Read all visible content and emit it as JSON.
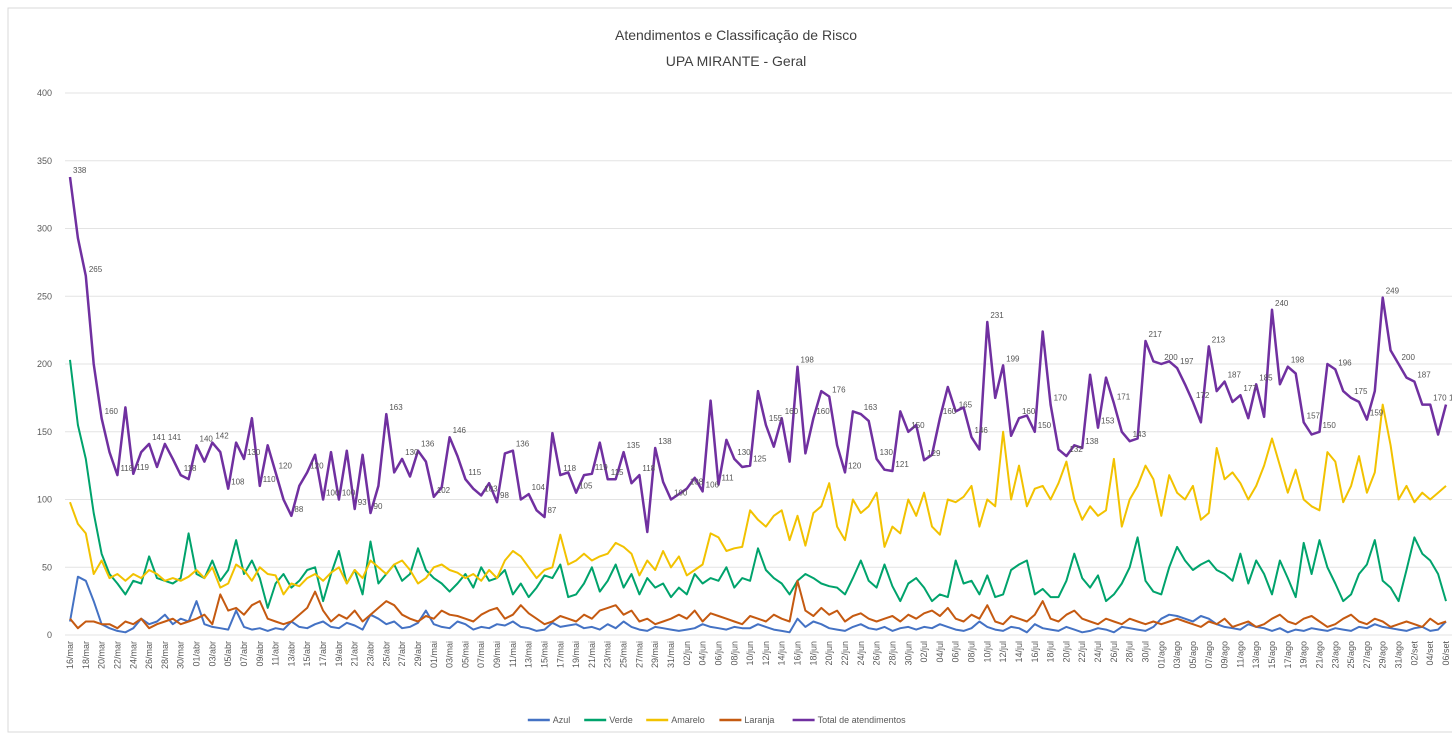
{
  "chart_data": {
    "type": "line",
    "title": "Atendimentos e Classificação de Risco",
    "subtitle": "UPA MIRANTE - Geral",
    "categories": [
      "16/mar",
      null,
      "18/mar",
      null,
      "20/mar",
      null,
      "22/mar",
      null,
      "24/mar",
      null,
      "26/mar",
      null,
      "28/mar",
      null,
      "30/mar",
      null,
      "01/abr",
      null,
      "03/abr",
      null,
      "05/abr",
      null,
      "07/abr",
      null,
      "09/abr",
      null,
      "11/abr",
      null,
      "13/abr",
      null,
      "15/abr",
      null,
      "17/abr",
      null,
      "19/abr",
      null,
      "21/abr",
      null,
      "23/abr",
      null,
      "25/abr",
      null,
      "27/abr",
      null,
      "29/abr",
      null,
      "01/mai",
      null,
      "03/mai",
      null,
      "05/mai",
      null,
      "07/mai",
      null,
      "09/mai",
      null,
      "11/mai",
      null,
      "13/mai",
      null,
      "15/mai",
      null,
      "17/mai",
      null,
      "19/mai",
      null,
      "21/mai",
      null,
      "23/mai",
      null,
      "25/mai",
      null,
      "27/mai",
      null,
      "29/mai",
      null,
      "31/mai",
      null,
      "02/jun",
      null,
      "04/jun",
      null,
      "06/jun",
      null,
      "08/jun",
      null,
      "10/jun",
      null,
      "12/jun",
      null,
      "14/jun",
      null,
      "16/jun",
      null,
      "18/jun",
      null,
      "20/jun",
      null,
      "22/jun",
      null,
      "24/jun",
      null,
      "26/jun",
      null,
      "28/jun",
      null,
      "30/jun",
      null,
      "02/jul",
      null,
      "04/jul",
      null,
      "06/jul",
      null,
      "08/jul",
      null,
      "10/jul",
      null,
      "12/jul",
      null,
      "14/jul",
      null,
      "16/jul",
      null,
      "18/jul",
      null,
      "20/jul",
      null,
      "22/jul",
      null,
      "24/jul",
      null,
      "26/jul",
      null,
      "28/jul",
      null,
      "30/jul",
      null,
      "01/ago",
      null,
      "03/ago",
      null,
      "05/ago",
      null,
      "07/ago",
      null,
      "09/ago",
      null,
      "11/ago",
      null,
      "13/ago",
      null,
      "15/ago",
      null,
      "17/ago",
      null,
      "19/ago",
      null,
      "21/ago",
      null,
      "23/ago",
      null,
      "25/ago",
      null,
      "27/ago",
      null,
      "29/ago",
      null,
      "31/ago",
      null,
      "02/set",
      null,
      "04/set",
      null,
      "06/set"
    ],
    "series": [
      {
        "name": "Azul",
        "color": "#4472c4",
        "values": [
          10,
          43,
          40,
          25,
          8,
          5,
          3,
          2,
          5,
          12,
          8,
          10,
          15,
          8,
          12,
          10,
          25,
          8,
          6,
          5,
          4,
          18,
          6,
          4,
          5,
          3,
          5,
          4,
          10,
          6,
          5,
          8,
          10,
          6,
          5,
          9,
          7,
          4,
          15,
          12,
          8,
          10,
          5,
          6,
          9,
          18,
          8,
          6,
          5,
          10,
          8,
          4,
          6,
          5,
          8,
          7,
          10,
          6,
          5,
          3,
          4,
          9,
          6,
          7,
          8,
          5,
          6,
          4,
          8,
          5,
          10,
          6,
          4,
          3,
          6,
          5,
          4,
          3,
          4,
          5,
          8,
          6,
          5,
          4,
          6,
          5,
          5,
          8,
          6,
          4,
          3,
          2,
          12,
          6,
          10,
          8,
          5,
          4,
          3,
          6,
          8,
          5,
          4,
          6,
          3,
          5,
          6,
          4,
          6,
          5,
          8,
          6,
          4,
          3,
          5,
          10,
          6,
          4,
          3,
          6,
          5,
          2,
          8,
          5,
          4,
          3,
          6,
          4,
          2,
          3,
          5,
          4,
          2,
          6,
          5,
          4,
          3,
          6,
          12,
          15,
          14,
          12,
          10,
          14,
          12,
          8,
          6,
          5,
          4,
          8,
          6,
          5,
          3,
          5,
          2,
          4,
          3,
          5,
          4,
          3,
          5,
          4,
          3,
          6,
          5,
          8,
          6,
          5,
          4,
          3,
          5,
          6,
          3,
          4,
          10
        ]
      },
      {
        "name": "Verde",
        "color": "#00a36c",
        "values": [
          203,
          155,
          130,
          90,
          60,
          45,
          38,
          30,
          40,
          38,
          58,
          42,
          40,
          38,
          42,
          75,
          45,
          42,
          55,
          40,
          48,
          70,
          45,
          55,
          42,
          20,
          38,
          45,
          35,
          40,
          48,
          50,
          25,
          45,
          62,
          38,
          48,
          30,
          69,
          38,
          45,
          52,
          40,
          45,
          64,
          48,
          42,
          38,
          32,
          38,
          45,
          35,
          50,
          40,
          42,
          48,
          30,
          38,
          28,
          35,
          44,
          42,
          52,
          28,
          30,
          38,
          50,
          32,
          40,
          52,
          35,
          45,
          30,
          42,
          35,
          38,
          28,
          35,
          30,
          45,
          38,
          42,
          40,
          50,
          35,
          42,
          40,
          64,
          48,
          42,
          38,
          30,
          40,
          45,
          42,
          38,
          36,
          35,
          30,
          42,
          55,
          40,
          35,
          52,
          36,
          25,
          38,
          42,
          35,
          25,
          30,
          28,
          55,
          38,
          40,
          30,
          44,
          28,
          30,
          48,
          52,
          55,
          30,
          34,
          28,
          28,
          40,
          60,
          42,
          35,
          44,
          25,
          30,
          38,
          50,
          72,
          40,
          32,
          30,
          50,
          65,
          55,
          48,
          52,
          55,
          48,
          45,
          40,
          60,
          38,
          55,
          45,
          30,
          55,
          42,
          28,
          68,
          45,
          70,
          50,
          38,
          25,
          30,
          45,
          52,
          70,
          40,
          35,
          25,
          48,
          72,
          60,
          55,
          45,
          25
        ]
      },
      {
        "name": "Amarelo",
        "color": "#f2c200",
        "values": [
          98,
          82,
          75,
          45,
          55,
          42,
          45,
          40,
          45,
          42,
          48,
          45,
          40,
          42,
          40,
          43,
          48,
          42,
          50,
          35,
          38,
          52,
          48,
          40,
          50,
          45,
          44,
          30,
          38,
          36,
          42,
          45,
          40,
          46,
          50,
          38,
          48,
          42,
          55,
          50,
          45,
          52,
          55,
          48,
          38,
          42,
          50,
          52,
          48,
          46,
          42,
          45,
          40,
          48,
          42,
          55,
          62,
          58,
          50,
          42,
          48,
          50,
          74,
          52,
          55,
          60,
          55,
          58,
          60,
          68,
          65,
          60,
          44,
          55,
          48,
          62,
          50,
          58,
          44,
          48,
          52,
          75,
          72,
          62,
          64,
          65,
          92,
          85,
          80,
          88,
          92,
          70,
          88,
          66,
          90,
          95,
          112,
          80,
          70,
          100,
          90,
          95,
          105,
          65,
          80,
          75,
          100,
          88,
          105,
          80,
          74,
          100,
          98,
          102,
          110,
          80,
          100,
          95,
          150,
          100,
          125,
          95,
          108,
          110,
          100,
          112,
          128,
          100,
          85,
          95,
          88,
          92,
          130,
          80,
          100,
          110,
          125,
          115,
          88,
          118,
          105,
          100,
          110,
          85,
          90,
          138,
          115,
          120,
          112,
          100,
          110,
          125,
          145,
          125,
          105,
          122,
          100,
          95,
          92,
          135,
          128,
          98,
          110,
          132,
          105,
          120,
          170,
          140,
          100,
          110,
          98,
          105,
          100,
          105,
          110
        ]
      },
      {
        "name": "Laranja",
        "color": "#c55a11",
        "values": [
          12,
          5,
          10,
          10,
          8,
          8,
          5,
          10,
          8,
          12,
          5,
          8,
          10,
          12,
          8,
          10,
          12,
          15,
          8,
          30,
          18,
          20,
          15,
          22,
          25,
          12,
          10,
          8,
          10,
          15,
          20,
          32,
          18,
          10,
          15,
          12,
          18,
          10,
          15,
          20,
          25,
          22,
          15,
          12,
          10,
          14,
          12,
          18,
          15,
          14,
          12,
          10,
          15,
          18,
          20,
          12,
          15,
          22,
          16,
          12,
          8,
          10,
          14,
          12,
          10,
          15,
          12,
          18,
          20,
          22,
          15,
          18,
          10,
          12,
          8,
          10,
          12,
          15,
          12,
          18,
          10,
          16,
          14,
          12,
          10,
          8,
          14,
          12,
          10,
          15,
          12,
          10,
          40,
          18,
          14,
          20,
          15,
          18,
          10,
          14,
          16,
          12,
          10,
          12,
          14,
          10,
          15,
          12,
          16,
          18,
          14,
          20,
          12,
          10,
          15,
          12,
          22,
          10,
          8,
          14,
          12,
          10,
          15,
          25,
          12,
          10,
          15,
          18,
          12,
          10,
          8,
          12,
          10,
          8,
          12,
          10,
          8,
          10,
          8,
          10,
          12,
          10,
          8,
          6,
          10,
          8,
          12,
          6,
          8,
          10,
          6,
          8,
          12,
          15,
          10,
          8,
          12,
          14,
          10,
          6,
          8,
          12,
          15,
          10,
          8,
          12,
          10,
          6,
          8,
          10,
          8,
          6,
          12,
          8,
          10
        ]
      },
      {
        "name": "Total de atendimentos",
        "color": "#7030a0",
        "values": [
          338,
          293,
          265,
          200,
          160,
          135,
          118,
          168,
          119,
          135,
          141,
          124,
          141,
          130,
          118,
          115,
          140,
          128,
          142,
          135,
          108,
          142,
          130,
          160,
          110,
          140,
          120,
          100,
          88,
          110,
          120,
          133,
          100,
          135,
          100,
          136,
          93,
          133,
          90,
          110,
          163,
          120,
          130,
          117,
          136,
          128,
          102,
          109,
          146,
          132,
          115,
          108,
          103,
          112,
          98,
          134,
          136,
          100,
          104,
          92,
          87,
          149,
          118,
          120,
          105,
          118,
          119,
          142,
          115,
          115,
          135,
          112,
          118,
          76,
          138,
          113,
          100,
          104,
          108,
          116,
          106,
          173,
          111,
          144,
          130,
          124,
          125,
          180,
          155,
          139,
          160,
          128,
          198,
          134,
          160,
          180,
          176,
          140,
          120,
          165,
          163,
          158,
          130,
          122,
          121,
          165,
          150,
          155,
          129,
          133,
          160,
          183,
          165,
          168,
          146,
          137,
          231,
          175,
          199,
          147,
          160,
          162,
          150,
          224,
          170,
          137,
          132,
          140,
          138,
          192,
          153,
          190,
          171,
          150,
          143,
          145,
          217,
          202,
          200,
          202,
          197,
          185,
          172,
          157,
          213,
          180,
          187,
          172,
          177,
          160,
          185,
          161,
          240,
          185,
          198,
          193,
          157,
          148,
          150,
          200,
          196,
          180,
          175,
          172,
          159,
          180,
          249,
          210,
          200,
          190,
          187,
          170,
          170,
          148,
          170
        ]
      }
    ],
    "ylim": [
      0,
      400
    ],
    "yticks": [
      0,
      50,
      100,
      150,
      200,
      250,
      300,
      350,
      400
    ],
    "grid": true,
    "legend": "bottom",
    "data_labels_series": 4
  }
}
